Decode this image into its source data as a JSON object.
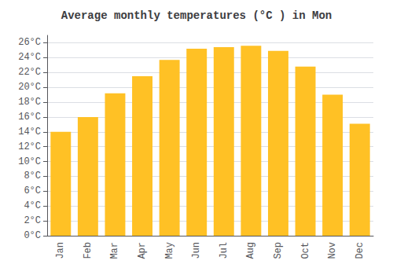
{
  "chart_data": {
    "type": "bar",
    "title": "Average monthly temperatures (°C ) in Mon",
    "categories": [
      "Jan",
      "Feb",
      "Mar",
      "Apr",
      "May",
      "Jun",
      "Jul",
      "Aug",
      "Sep",
      "Oct",
      "Nov",
      "Dec"
    ],
    "values": [
      14.0,
      16.0,
      19.2,
      21.5,
      23.7,
      25.2,
      25.4,
      25.6,
      24.9,
      22.8,
      19.0,
      15.1
    ],
    "color": "#FFC125",
    "ylim": [
      0,
      27
    ],
    "yticks": [
      {
        "value": 0,
        "label": "0°C"
      },
      {
        "value": 2,
        "label": "2°C"
      },
      {
        "value": 4,
        "label": "4°C"
      },
      {
        "value": 6,
        "label": "6°C"
      },
      {
        "value": 8,
        "label": "8°C"
      },
      {
        "value": 10,
        "label": "10°C"
      },
      {
        "value": 12,
        "label": "12°C"
      },
      {
        "value": 14,
        "label": "14°C"
      },
      {
        "value": 16,
        "label": "16°C"
      },
      {
        "value": 18,
        "label": "18°C"
      },
      {
        "value": 20,
        "label": "20°C"
      },
      {
        "value": 22,
        "label": "22°C"
      },
      {
        "value": 24,
        "label": "24°C"
      },
      {
        "value": 26,
        "label": "26°C"
      }
    ],
    "grid": true
  }
}
